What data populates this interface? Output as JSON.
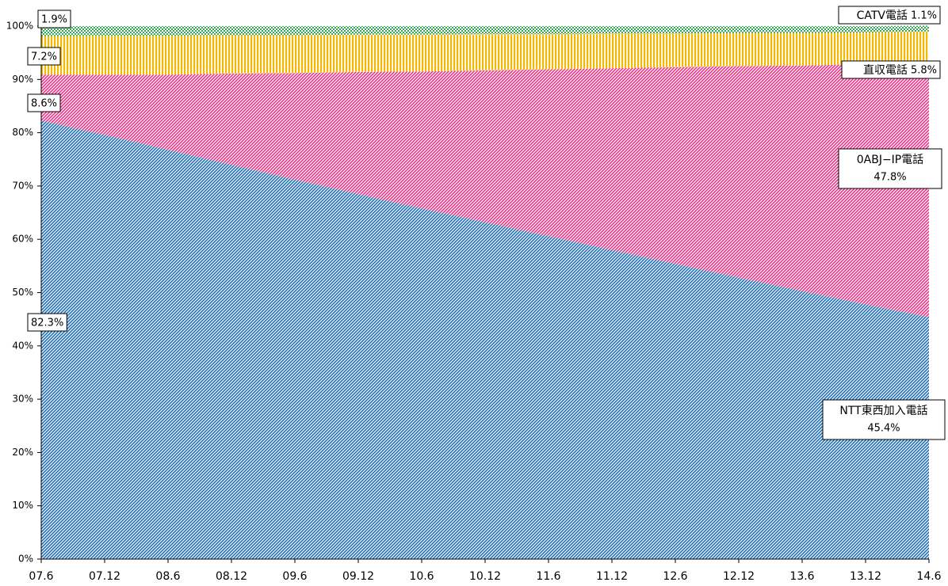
{
  "chart_data": {
    "type": "stacked_area",
    "categories": [
      "07.6",
      "07.12",
      "08.6",
      "08.12",
      "09.6",
      "09.12",
      "10.6",
      "10.12",
      "11.6",
      "11.12",
      "12.6",
      "12.12",
      "13.6",
      "13.12",
      "14.6"
    ],
    "series": [
      {
        "name": "NTT東西加入電話",
        "color": "#1f6fb8",
        "pattern": "diagonal",
        "values": [
          82.3,
          79.6,
          76.8,
          74.0,
          71.2,
          68.5,
          65.8,
          63.2,
          60.6,
          58.0,
          55.4,
          52.8,
          50.3,
          47.8,
          45.4
        ],
        "value_labels": [
          "82.3%",
          null,
          null,
          null,
          null,
          null,
          null,
          null,
          null,
          null,
          null,
          null,
          null,
          null,
          "45.4%"
        ]
      },
      {
        "name": "0ABJ−IP電話",
        "color": "#e8338a",
        "pattern": "diagonal",
        "values": [
          8.6,
          11.3,
          14.1,
          17.1,
          20.0,
          22.9,
          25.7,
          28.5,
          31.3,
          34.1,
          36.9,
          39.7,
          42.3,
          45.1,
          47.8
        ],
        "value_labels": [
          "8.6%",
          null,
          null,
          null,
          null,
          null,
          null,
          null,
          null,
          null,
          null,
          null,
          null,
          null,
          "47.8%"
        ]
      },
      {
        "name": "直収電話",
        "color": "#f5b800",
        "pattern": "vertical",
        "values": [
          7.2,
          7.3,
          7.3,
          7.2,
          7.1,
          7.0,
          6.9,
          6.8,
          6.6,
          6.5,
          6.3,
          6.2,
          6.1,
          5.9,
          5.8
        ],
        "value_labels": [
          "7.2%",
          null,
          null,
          null,
          null,
          null,
          null,
          null,
          null,
          null,
          null,
          null,
          null,
          null,
          "5.8%"
        ]
      },
      {
        "name": "CATV電話",
        "color": "#3aaa5a",
        "pattern": "dots",
        "values": [
          1.9,
          1.8,
          1.8,
          1.7,
          1.7,
          1.6,
          1.6,
          1.5,
          1.5,
          1.4,
          1.4,
          1.3,
          1.3,
          1.2,
          1.1
        ],
        "value_labels": [
          "1.9%",
          null,
          null,
          null,
          null,
          null,
          null,
          null,
          null,
          null,
          null,
          null,
          null,
          null,
          "1.1%"
        ]
      }
    ],
    "ylim": [
      0,
      100
    ],
    "yticks": [
      {
        "value": 0,
        "label": "0%"
      },
      {
        "value": 10,
        "label": "10%"
      },
      {
        "value": 20,
        "label": "20%"
      },
      {
        "value": 30,
        "label": "30%"
      },
      {
        "value": 40,
        "label": "40%"
      },
      {
        "value": 50,
        "label": "50%"
      },
      {
        "value": 60,
        "label": "60%"
      },
      {
        "value": 70,
        "label": "70%"
      },
      {
        "value": 80,
        "label": "80%"
      },
      {
        "value": 90,
        "label": "90%"
      },
      {
        "value": 100,
        "label": "100%"
      }
    ]
  }
}
